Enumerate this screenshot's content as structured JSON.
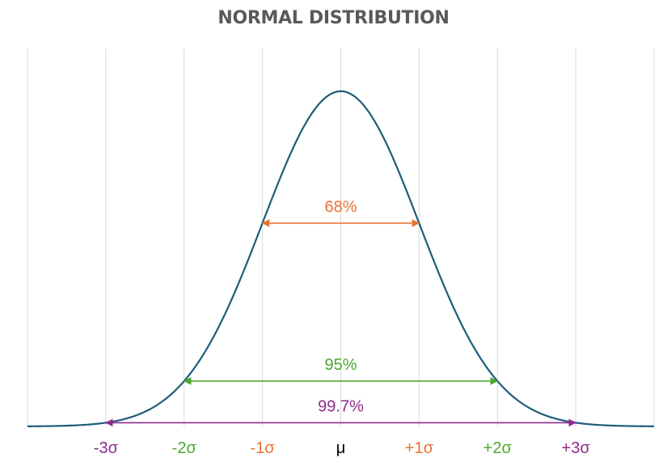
{
  "chart_data": {
    "type": "line",
    "title": "NORMAL DISTRIBUTION",
    "xlabel": "",
    "ylabel": "",
    "xlim": [
      -4,
      4
    ],
    "ylim": [
      0,
      0.42
    ],
    "grid": {
      "vertical": true,
      "horizontal": false
    },
    "legend": "none",
    "curve_color": "#1F5C7A",
    "gridline_color": "#D9D9D9",
    "x_ticks": [
      {
        "value": -3,
        "label": "-3σ",
        "color": "#8E2C8E"
      },
      {
        "value": -2,
        "label": "-2σ",
        "color": "#4EA72E"
      },
      {
        "value": -1,
        "label": "-1σ",
        "color": "#E97132"
      },
      {
        "value": 0,
        "label": "μ",
        "color": "#000000"
      },
      {
        "value": 1,
        "label": "+1σ",
        "color": "#E97132"
      },
      {
        "value": 2,
        "label": "+2σ",
        "color": "#4EA72E"
      },
      {
        "value": 3,
        "label": "+3σ",
        "color": "#8E2C8E"
      }
    ],
    "intervals": [
      {
        "label": "68%",
        "from": -1,
        "to": 1,
        "color": "#E97132"
      },
      {
        "label": "95%",
        "from": -2,
        "to": 2,
        "color": "#4EA72E"
      },
      {
        "label": "99.7%",
        "from": -3,
        "to": 3,
        "color": "#8E2C8E"
      }
    ],
    "x": [
      -4,
      -3.5,
      -3,
      -2.5,
      -2,
      -1.5,
      -1,
      -0.5,
      0,
      0.5,
      1,
      1.5,
      2,
      2.5,
      3,
      3.5,
      4
    ],
    "series": [
      {
        "values": [
          0.0001,
          0.0009,
          0.0044,
          0.0175,
          0.054,
          0.1295,
          0.242,
          0.3521,
          0.3989,
          0.3521,
          0.242,
          0.1295,
          0.054,
          0.0175,
          0.0044,
          0.0009,
          0.0001
        ]
      }
    ]
  }
}
